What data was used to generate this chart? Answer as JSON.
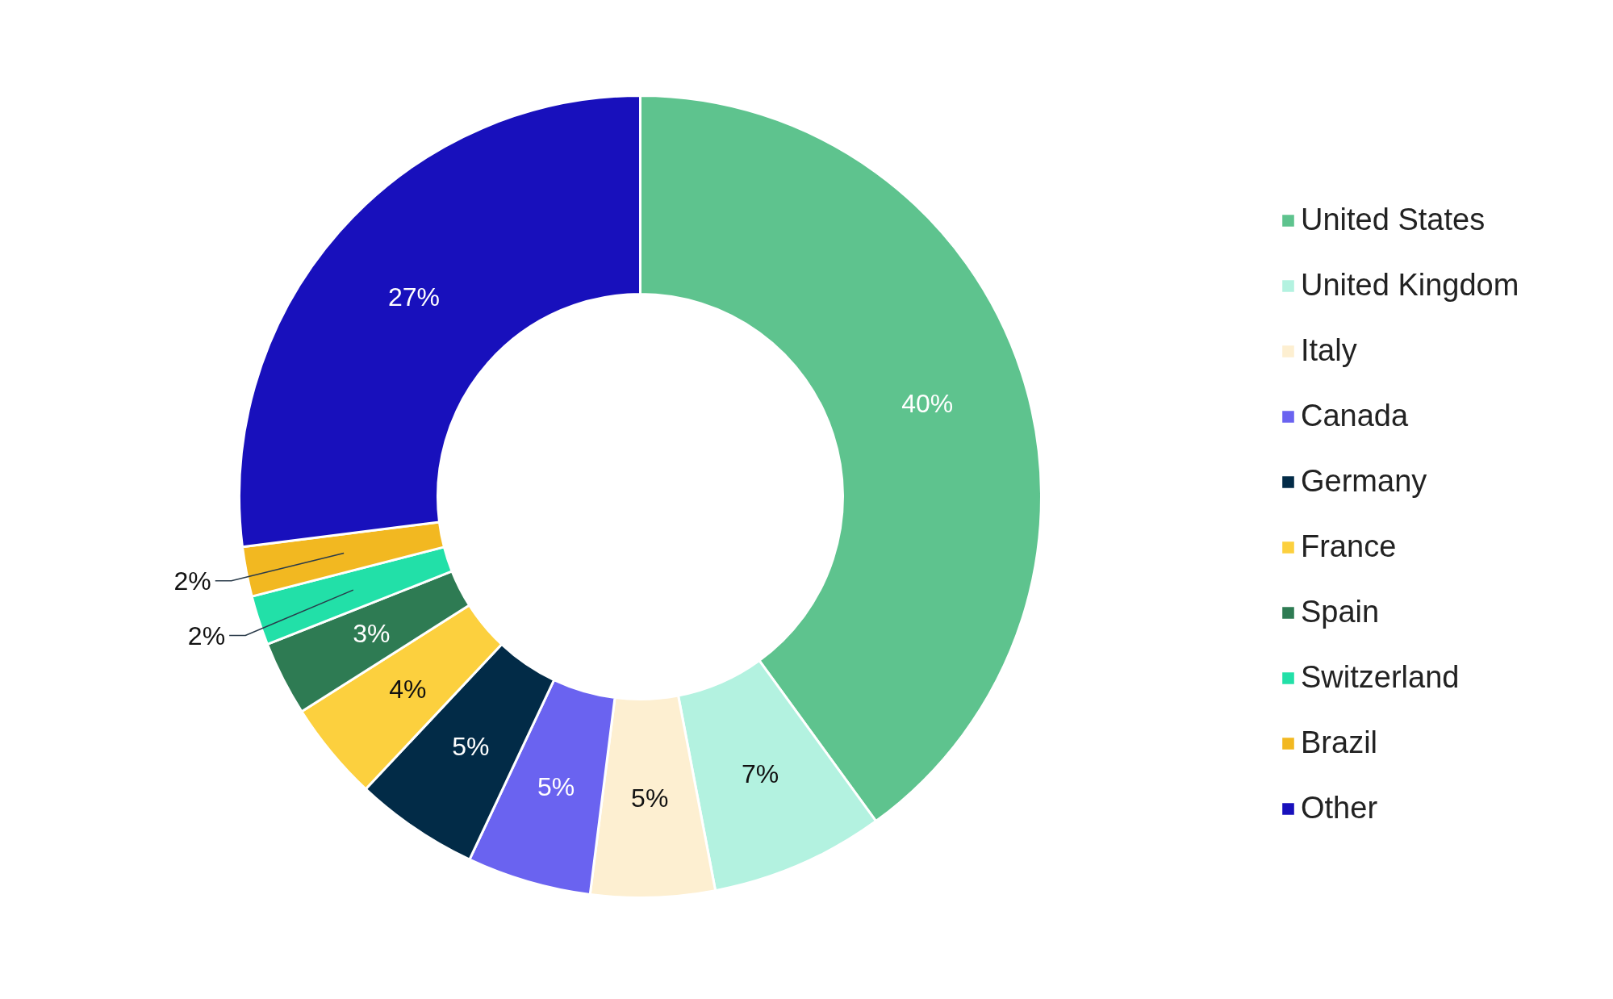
{
  "chart_data": {
    "type": "donut",
    "categories": [
      "United States",
      "United Kingdom",
      "Italy",
      "Canada",
      "Germany",
      "France",
      "Spain",
      "Switzerland",
      "Brazil",
      "Other"
    ],
    "values": [
      40,
      7,
      5,
      5,
      5,
      4,
      3,
      2,
      2,
      27
    ],
    "value_labels": [
      "40%",
      "7%",
      "5%",
      "5%",
      "5%",
      "4%",
      "3%",
      "2%",
      "2%",
      "27%"
    ],
    "colors": [
      "#5ec38e",
      "#b3f2e0",
      "#fdefd1",
      "#6a63f0",
      "#022b47",
      "#fcd03e",
      "#2e7b53",
      "#22e0a8",
      "#f2b821",
      "#1810bc"
    ],
    "legend": "right"
  }
}
